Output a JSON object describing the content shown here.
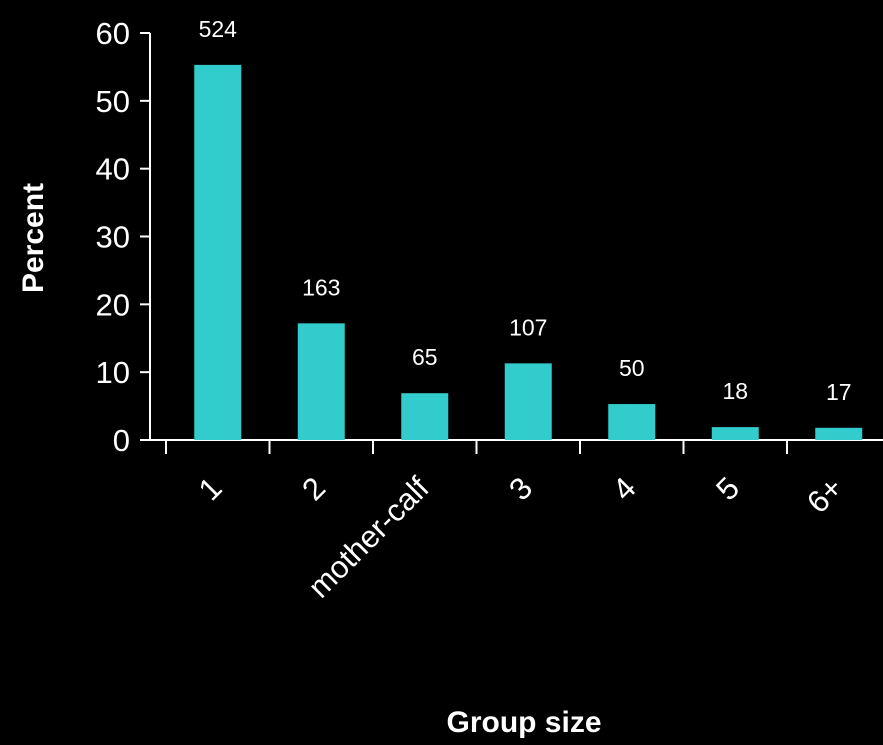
{
  "chart_data": {
    "type": "bar",
    "title": "",
    "xlabel": "Group size",
    "ylabel": "Percent",
    "categories": [
      "1",
      "2",
      "mother-calf",
      "3",
      "4",
      "5",
      "6+"
    ],
    "values": [
      55.3,
      17.2,
      6.9,
      11.3,
      5.3,
      1.9,
      1.8
    ],
    "data_labels": [
      "524",
      "163",
      "65",
      "107",
      "50",
      "18",
      "17"
    ],
    "yticks": [
      "0",
      "10",
      "20",
      "30",
      "40",
      "50",
      "60"
    ],
    "ylim": [
      0,
      60
    ],
    "grid": false,
    "legend": "none",
    "bar_color": "#33cccc",
    "background": "#000000",
    "text_color": "#ffffff"
  }
}
